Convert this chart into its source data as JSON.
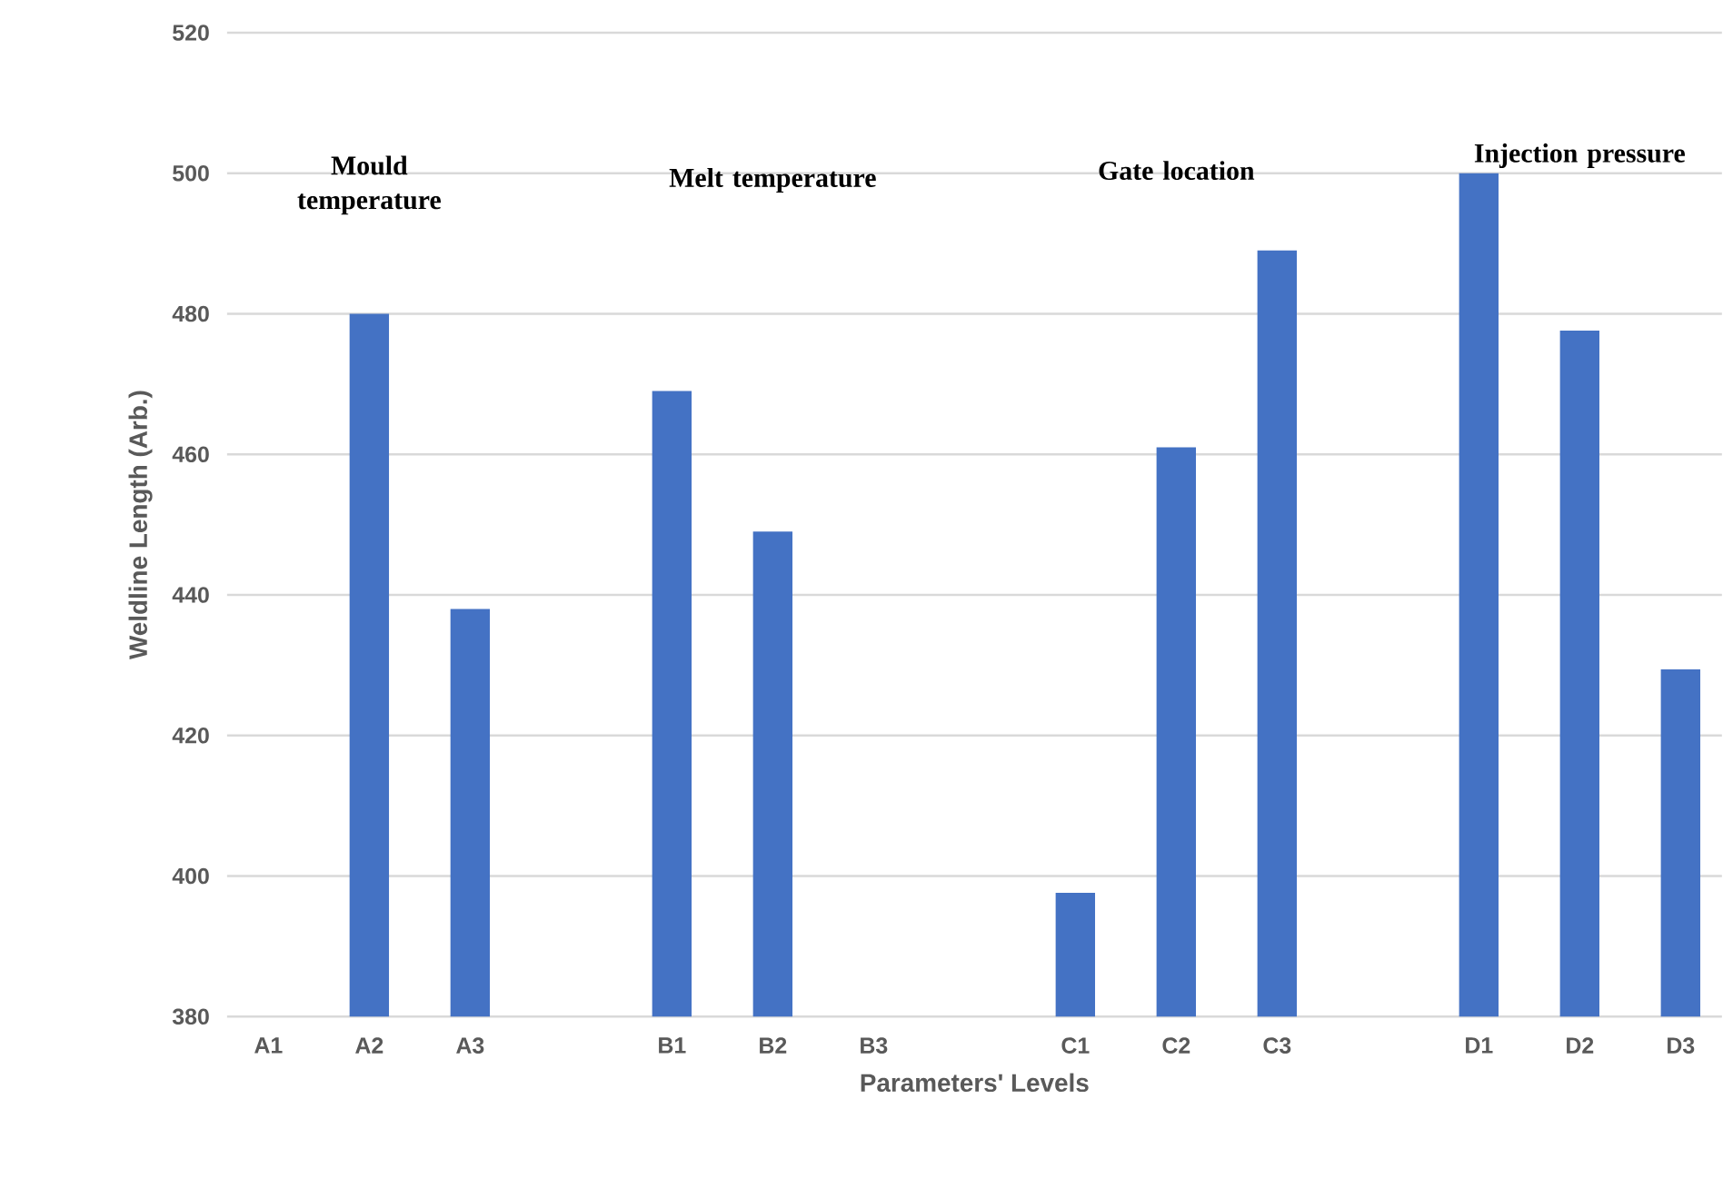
{
  "chart_data": {
    "type": "bar",
    "xlabel": "Parameters' Levels",
    "ylabel": "Weldline Length (Arb.)",
    "categories": [
      "A1",
      "A2",
      "A3",
      null,
      "B1",
      "B2",
      "B3",
      null,
      "C1",
      "C2",
      "C3",
      null,
      "D1",
      "D2",
      "D3"
    ],
    "values": [
      null,
      480,
      438,
      null,
      469,
      449,
      null,
      null,
      397.6,
      461,
      489,
      null,
      500,
      477.6,
      429.4
    ],
    "color": "#4472c4",
    "ylim": [
      380,
      520
    ],
    "yticks": [
      380,
      400,
      420,
      440,
      460,
      480,
      500,
      520
    ],
    "grid": "y",
    "annotations": [
      "Mould temperature",
      "Melt temperature",
      "Gate location",
      "Injection pressure"
    ]
  }
}
